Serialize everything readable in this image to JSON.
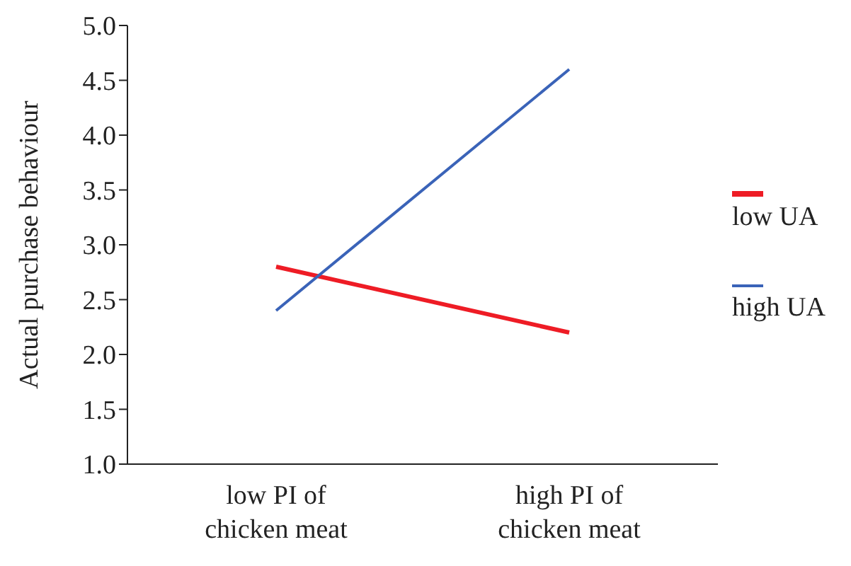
{
  "chart_data": {
    "type": "line",
    "ylabel": "Actual purchase behaviour",
    "categories": [
      "low PI of chicken meat",
      "high PI of chicken meat"
    ],
    "series": [
      {
        "name": "low UA",
        "color": "#ee1c25",
        "values": [
          2.8,
          2.2
        ]
      },
      {
        "name": "high UA",
        "color": "#3a63b8",
        "values": [
          2.4,
          4.6
        ]
      }
    ],
    "ylim": [
      1,
      5
    ],
    "yticks": [
      {
        "value": 1,
        "label": "1.0"
      },
      {
        "value": 1.5,
        "label": "1.5"
      },
      {
        "value": 2,
        "label": "2.0"
      },
      {
        "value": 2.5,
        "label": "2.5"
      },
      {
        "value": 3,
        "label": "3.0"
      },
      {
        "value": 3.5,
        "label": "3.5"
      },
      {
        "value": 4,
        "label": "4.0"
      },
      {
        "value": 4.5,
        "label": "4.5"
      },
      {
        "value": 5,
        "label": "5.0"
      }
    ],
    "grid": false,
    "legend": "right",
    "marker": "none",
    "line_style": "solid"
  }
}
